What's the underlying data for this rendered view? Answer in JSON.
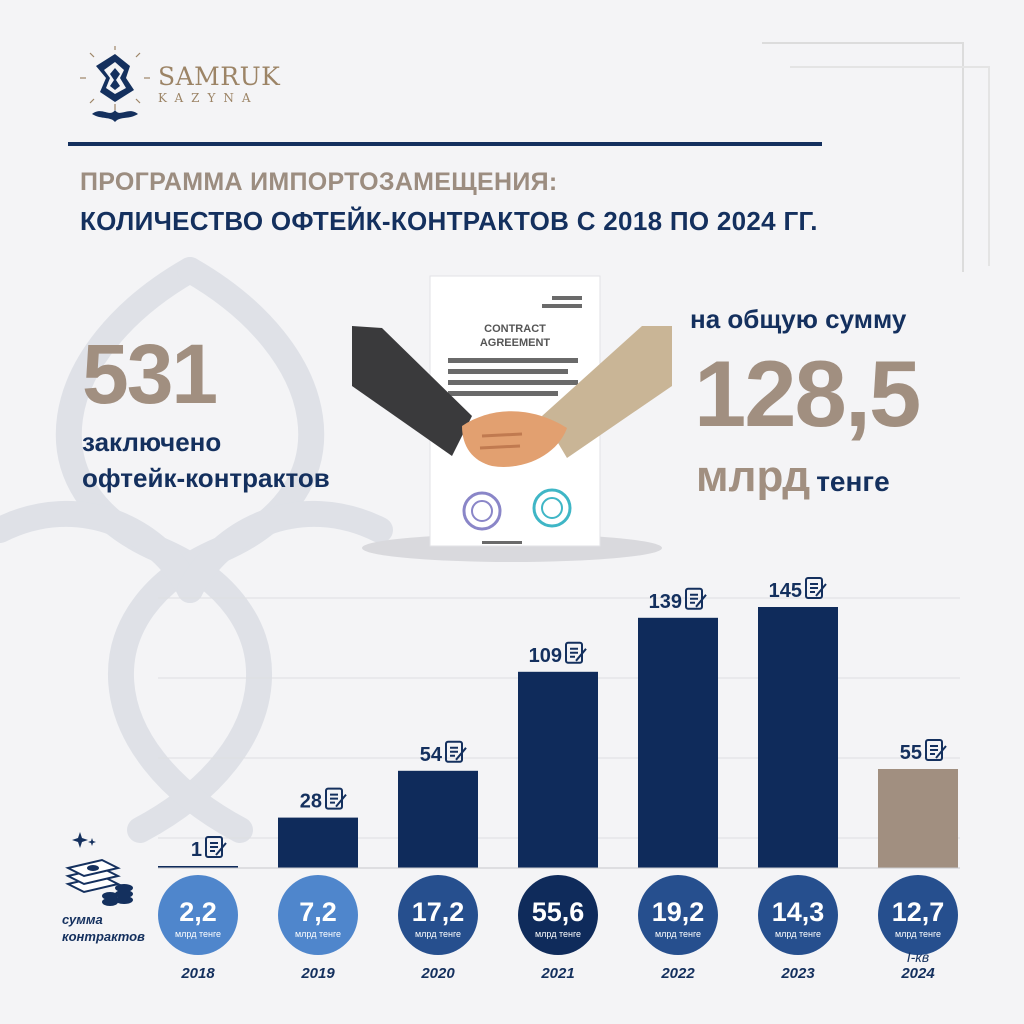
{
  "logo": {
    "name": "SAMRUK",
    "sub": "KAZYNA"
  },
  "title": {
    "line1": "ПРОГРАММА ИМПОРТОЗАМЕЩЕНИЯ:",
    "line2": "КОЛИЧЕСТВО ОФТЕЙК-КОНТРАКТОВ С 2018 ПО 2024 ГГ."
  },
  "summary": {
    "count": "531",
    "count_caption_1": "заключено",
    "count_caption_2": "офтейк-контрактов",
    "sum_caption": "на общую сумму",
    "sum_value": "128,5",
    "sum_unit_big": "млрд",
    "sum_unit_small": "тенге"
  },
  "illustration": {
    "doc_title_1": "CONTRACT",
    "doc_title_2": "AGREEMENT"
  },
  "legend": {
    "label_1": "сумма",
    "label_2": "контрактов",
    "icon": "money-stack-icon"
  },
  "colors": {
    "navy": "#0f2b5b",
    "beige": "#a18f80",
    "circle_light": "#4f86cc",
    "circle_mid": "#264f8e",
    "circle_dark": "#0f2b5b"
  },
  "chart_data": {
    "type": "bar",
    "categories": [
      "2018",
      "2019",
      "2020",
      "2021",
      "2022",
      "2023",
      "2024"
    ],
    "category_notes": [
      "",
      "",
      "",
      "",
      "",
      "",
      "I-кв"
    ],
    "series": [
      {
        "values": [
          1,
          28,
          54,
          109,
          139,
          145,
          55
        ]
      }
    ],
    "value_labels": [
      "1",
      "28",
      "54",
      "109",
      "139",
      "145",
      "55"
    ],
    "bar_colors": [
      "#0f2b5b",
      "#0f2b5b",
      "#0f2b5b",
      "#0f2b5b",
      "#0f2b5b",
      "#0f2b5b",
      "#a18f80"
    ],
    "sums": [
      "2,2",
      "7,2",
      "17,2",
      "55,6",
      "19,2",
      "14,3",
      "12,7"
    ],
    "sum_unit": "млрд тенге",
    "ylim": [
      0,
      150
    ],
    "grid": true,
    "label_icon": "contract-document-icon"
  }
}
